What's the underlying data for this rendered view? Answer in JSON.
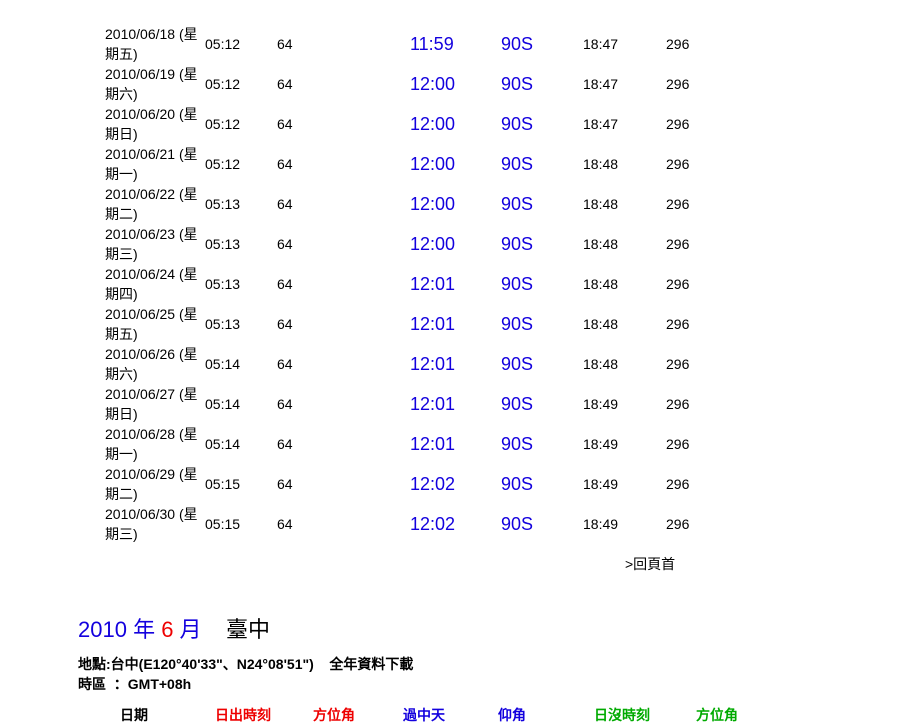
{
  "rows": [
    {
      "date": "2010/06/18 (星期五)",
      "sr": "05:12",
      "az1": "64",
      "noon": "11:59",
      "elev": "90S",
      "ss": "18:47",
      "az2": "296"
    },
    {
      "date": "2010/06/19 (星期六)",
      "sr": "05:12",
      "az1": "64",
      "noon": "12:00",
      "elev": "90S",
      "ss": "18:47",
      "az2": "296"
    },
    {
      "date": "2010/06/20 (星期日)",
      "sr": "05:12",
      "az1": "64",
      "noon": "12:00",
      "elev": "90S",
      "ss": "18:47",
      "az2": "296"
    },
    {
      "date": "2010/06/21 (星期一)",
      "sr": "05:12",
      "az1": "64",
      "noon": "12:00",
      "elev": "90S",
      "ss": "18:48",
      "az2": "296"
    },
    {
      "date": "2010/06/22 (星期二)",
      "sr": "05:13",
      "az1": "64",
      "noon": "12:00",
      "elev": "90S",
      "ss": "18:48",
      "az2": "296"
    },
    {
      "date": "2010/06/23 (星期三)",
      "sr": "05:13",
      "az1": "64",
      "noon": "12:00",
      "elev": "90S",
      "ss": "18:48",
      "az2": "296"
    },
    {
      "date": "2010/06/24 (星期四)",
      "sr": "05:13",
      "az1": "64",
      "noon": "12:01",
      "elev": "90S",
      "ss": "18:48",
      "az2": "296"
    },
    {
      "date": "2010/06/25 (星期五)",
      "sr": "05:13",
      "az1": "64",
      "noon": "12:01",
      "elev": "90S",
      "ss": "18:48",
      "az2": "296"
    },
    {
      "date": "2010/06/26 (星期六)",
      "sr": "05:14",
      "az1": "64",
      "noon": "12:01",
      "elev": "90S",
      "ss": "18:48",
      "az2": "296"
    },
    {
      "date": "2010/06/27 (星期日)",
      "sr": "05:14",
      "az1": "64",
      "noon": "12:01",
      "elev": "90S",
      "ss": "18:49",
      "az2": "296"
    },
    {
      "date": "2010/06/28 (星期一)",
      "sr": "05:14",
      "az1": "64",
      "noon": "12:01",
      "elev": "90S",
      "ss": "18:49",
      "az2": "296"
    },
    {
      "date": "2010/06/29 (星期二)",
      "sr": "05:15",
      "az1": "64",
      "noon": "12:02",
      "elev": "90S",
      "ss": "18:49",
      "az2": "296"
    },
    {
      "date": "2010/06/30 (星期三)",
      "sr": "05:15",
      "az1": "64",
      "noon": "12:02",
      "elev": "90S",
      "ss": "18:49",
      "az2": "296"
    }
  ],
  "back_to_top": ">回頁首",
  "title": {
    "year": "2010",
    "y_unit": " 年 ",
    "month": "6",
    "m_unit": " 月",
    "place": "臺中"
  },
  "loc_line1_label": "地點:",
  "loc_line1_val": "台中(E120°40'33\"、N24°08'51\")",
  "loc_line1_download": "全年資料下載",
  "loc_line2_label": "時區",
  "loc_line2_val": "：GMT+08h",
  "hdr": {
    "date": "日期",
    "sr": "日出時刻",
    "az1": "方位角",
    "noon": "過中天",
    "elev": "仰角",
    "ss": "日沒時刻",
    "az2": "方位角"
  }
}
